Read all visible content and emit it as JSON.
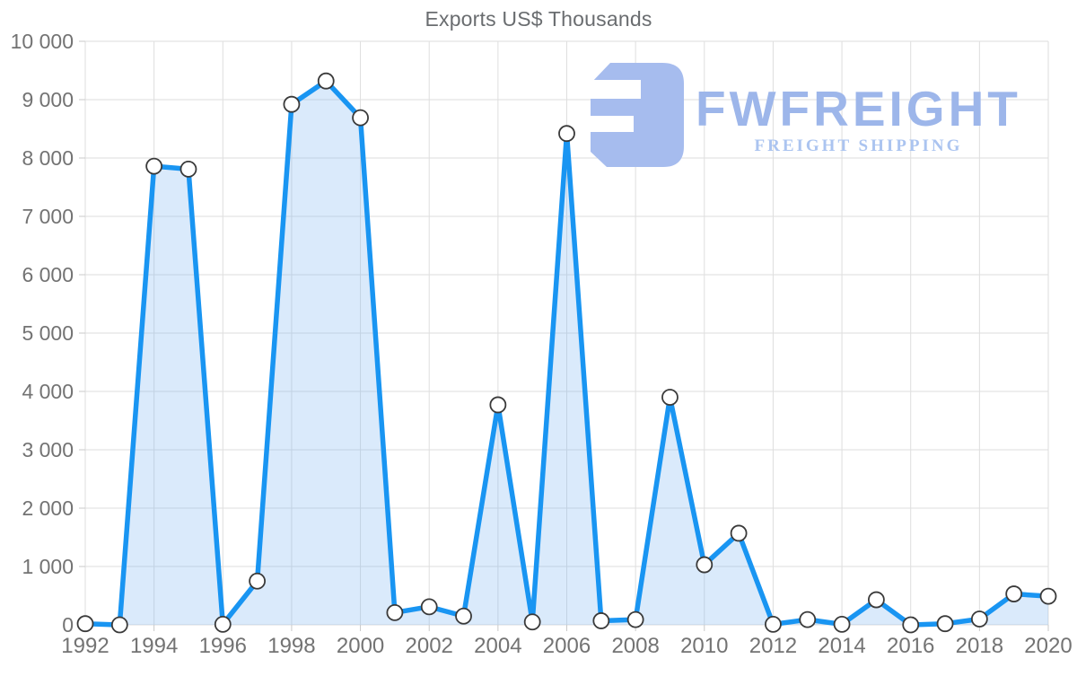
{
  "title": "Exports US$ Thousands",
  "watermark": {
    "brand": "FWFREIGHT",
    "tagline": "FREIGHT SHIPPING",
    "mark_color": "#a6bcee",
    "brand_text_color": "#9db6ea",
    "tagline_color": "#abc4f0"
  },
  "chart_data": {
    "type": "area",
    "title": "Exports US$ Thousands",
    "xlabel": "",
    "ylabel": "",
    "x": [
      1992,
      1993,
      1994,
      1995,
      1996,
      1997,
      1998,
      1999,
      2000,
      2001,
      2002,
      2003,
      2004,
      2005,
      2006,
      2007,
      2008,
      2009,
      2010,
      2011,
      2012,
      2013,
      2014,
      2015,
      2016,
      2017,
      2018,
      2019,
      2020
    ],
    "values": [
      20,
      0,
      7860,
      7810,
      10,
      750,
      8920,
      9320,
      8690,
      210,
      310,
      150,
      3770,
      50,
      8420,
      70,
      90,
      3900,
      1030,
      1570,
      10,
      90,
      10,
      430,
      0,
      20,
      100,
      530,
      490
    ],
    "xlim": [
      1992,
      2020
    ],
    "ylim": [
      0,
      10000
    ],
    "ytick_values": [
      0,
      1000,
      2000,
      3000,
      4000,
      5000,
      6000,
      7000,
      8000,
      9000,
      10000
    ],
    "ytick_labels": [
      "0",
      "1 000",
      "2 000",
      "3 000",
      "4 000",
      "5 000",
      "6 000",
      "7 000",
      "8 000",
      "9 000",
      "10 000"
    ],
    "xtick_values": [
      1992,
      1994,
      1996,
      1998,
      2000,
      2002,
      2004,
      2006,
      2008,
      2010,
      2012,
      2014,
      2016,
      2018,
      2020
    ],
    "xtick_labels": [
      "1992",
      "1994",
      "1996",
      "1998",
      "2000",
      "2002",
      "2004",
      "2006",
      "2008",
      "2010",
      "2012",
      "2014",
      "2016",
      "2018",
      "2020"
    ],
    "grid": true,
    "legend": "none",
    "line_color": "#1995f2",
    "fill_color": "rgba(121,181,242,0.28)",
    "grid_color": "#dedede",
    "tick_color": "#c9c9c9",
    "label_color": "#737373",
    "marker_fill": "#ffffff",
    "marker_stroke": "#3a3a3a"
  }
}
